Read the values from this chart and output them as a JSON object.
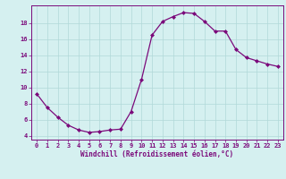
{
  "x": [
    0,
    1,
    2,
    3,
    4,
    5,
    6,
    7,
    8,
    9,
    10,
    11,
    12,
    13,
    14,
    15,
    16,
    17,
    18,
    19,
    20,
    21,
    22,
    23
  ],
  "y": [
    9.2,
    7.5,
    6.3,
    5.3,
    4.7,
    4.4,
    4.5,
    4.7,
    4.8,
    7.0,
    11.0,
    16.5,
    18.2,
    18.8,
    19.3,
    19.2,
    18.2,
    17.0,
    17.0,
    14.7,
    13.7,
    13.3,
    12.9,
    12.6
  ],
  "line_color": "#7b0a7b",
  "marker": "D",
  "marker_size": 2.0,
  "bg_color": "#d5f0f0",
  "grid_color": "#b0d8d8",
  "xlabel": "Windchill (Refroidissement éolien,°C)",
  "ylabel": "",
  "xlim": [
    -0.5,
    23.5
  ],
  "ylim": [
    3.5,
    20.2
  ],
  "yticks": [
    4,
    6,
    8,
    10,
    12,
    14,
    16,
    18
  ],
  "xticks": [
    0,
    1,
    2,
    3,
    4,
    5,
    6,
    7,
    8,
    9,
    10,
    11,
    12,
    13,
    14,
    15,
    16,
    17,
    18,
    19,
    20,
    21,
    22,
    23
  ],
  "tick_color": "#7b0a7b",
  "tick_fontsize": 5.0,
  "xlabel_fontsize": 5.5,
  "linewidth": 0.9
}
